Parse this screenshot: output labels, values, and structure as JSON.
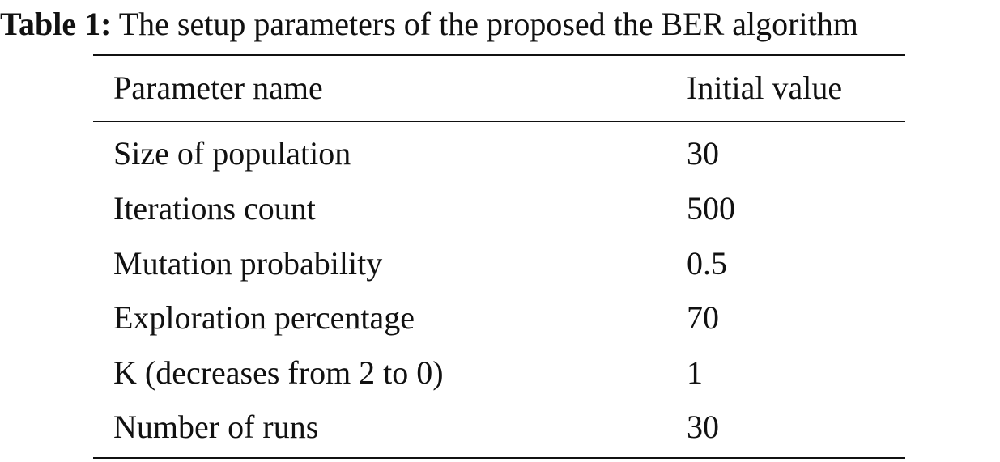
{
  "caption": {
    "label": "Table 1:",
    "text": "The setup parameters of the proposed the BER algorithm"
  },
  "table": {
    "headers": [
      "Parameter name",
      "Initial value"
    ],
    "rows": [
      [
        "Size of population",
        "30"
      ],
      [
        "Iterations count",
        "500"
      ],
      [
        "Mutation probability",
        "0.5"
      ],
      [
        "Exploration percentage",
        "70"
      ],
      [
        "K (decreases from 2 to 0)",
        "1"
      ],
      [
        "Number of runs",
        "30"
      ]
    ]
  }
}
